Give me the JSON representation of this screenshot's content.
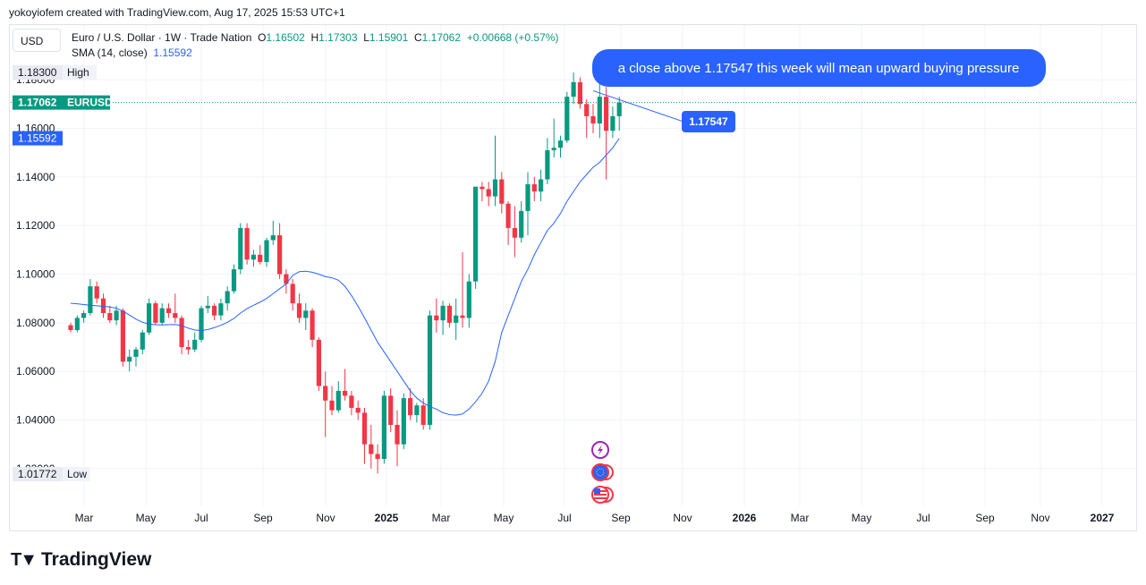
{
  "caption": "yokoyiofem created with TradingView.com, Aug 17, 2025 15:53 UTC+1",
  "currency": "USD",
  "legend": {
    "symbol": "Euro / U.S. Dollar · 1W · Trade Nation",
    "open_label": "O",
    "open": "1.16502",
    "high_label": "H",
    "high": "1.17303",
    "low_label": "L",
    "low": "1.15901",
    "close_label": "C",
    "close": "1.17062",
    "change": "+0.00668 (+0.57%)",
    "sma_label": "SMA (14, close)",
    "sma_value": "1.15592"
  },
  "brand": "TradingView",
  "colors": {
    "up": "#089981",
    "down": "#f23645",
    "sma": "#2962ff",
    "callout": "#2962ff"
  },
  "chart_data": {
    "type": "candlestick",
    "y_ticks": [
      "1.18000",
      "1.16000",
      "1.14000",
      "1.12000",
      "1.10000",
      "1.08000",
      "1.06000",
      "1.04000",
      "1.02000"
    ],
    "y_tick_values": [
      1.18,
      1.16,
      1.14,
      1.12,
      1.1,
      1.08,
      1.06,
      1.04,
      1.02
    ],
    "x_ticks": [
      "Mar",
      "May",
      "Jul",
      "Sep",
      "Nov",
      "2025",
      "Mar",
      "May",
      "Jul",
      "Sep",
      "Nov",
      "2026",
      "Mar",
      "May",
      "Jul",
      "Sep",
      "Nov",
      "2027"
    ],
    "ylim": [
      1.0045,
      1.2025
    ],
    "grid": true,
    "price_labels": [
      {
        "text": "1.18300",
        "tag": "High",
        "value": 1.183
      },
      {
        "text": "1.17062",
        "tag": "EURUSD",
        "value": 1.17062
      },
      {
        "text": "1.15592",
        "tag": "",
        "value": 1.15592
      },
      {
        "text": "1.01772",
        "tag": "Low",
        "value": 1.01772
      }
    ],
    "candles": [
      [
        1.079,
        1.08,
        1.076,
        1.077
      ],
      [
        1.077,
        1.083,
        1.076,
        1.082
      ],
      [
        1.082,
        1.085,
        1.08,
        1.084
      ],
      [
        1.084,
        1.098,
        1.083,
        1.095
      ],
      [
        1.095,
        1.097,
        1.088,
        1.09
      ],
      [
        1.09,
        1.092,
        1.082,
        1.084
      ],
      [
        1.084,
        1.087,
        1.08,
        1.081
      ],
      [
        1.081,
        1.087,
        1.079,
        1.085
      ],
      [
        1.085,
        1.086,
        1.062,
        1.064
      ],
      [
        1.064,
        1.069,
        1.06,
        1.066
      ],
      [
        1.066,
        1.07,
        1.062,
        1.069
      ],
      [
        1.069,
        1.077,
        1.067,
        1.076
      ],
      [
        1.076,
        1.09,
        1.075,
        1.088
      ],
      [
        1.088,
        1.089,
        1.079,
        1.08
      ],
      [
        1.08,
        1.088,
        1.079,
        1.086
      ],
      [
        1.086,
        1.088,
        1.082,
        1.084
      ],
      [
        1.084,
        1.092,
        1.08,
        1.082
      ],
      [
        1.082,
        1.083,
        1.067,
        1.07
      ],
      [
        1.07,
        1.073,
        1.067,
        1.069
      ],
      [
        1.069,
        1.076,
        1.068,
        1.073
      ],
      [
        1.073,
        1.087,
        1.072,
        1.086
      ],
      [
        1.086,
        1.091,
        1.084,
        1.087
      ],
      [
        1.087,
        1.088,
        1.081,
        1.083
      ],
      [
        1.083,
        1.09,
        1.081,
        1.088
      ],
      [
        1.088,
        1.095,
        1.085,
        1.093
      ],
      [
        1.093,
        1.104,
        1.092,
        1.102
      ],
      [
        1.102,
        1.121,
        1.1,
        1.119
      ],
      [
        1.119,
        1.121,
        1.104,
        1.106
      ],
      [
        1.106,
        1.11,
        1.103,
        1.108
      ],
      [
        1.108,
        1.112,
        1.104,
        1.105
      ],
      [
        1.105,
        1.115,
        1.103,
        1.114
      ],
      [
        1.114,
        1.122,
        1.112,
        1.116
      ],
      [
        1.116,
        1.121,
        1.098,
        1.1
      ],
      [
        1.1,
        1.102,
        1.092,
        1.096
      ],
      [
        1.096,
        1.098,
        1.085,
        1.088
      ],
      [
        1.088,
        1.092,
        1.08,
        1.082
      ],
      [
        1.082,
        1.088,
        1.077,
        1.085
      ],
      [
        1.085,
        1.086,
        1.07,
        1.073
      ],
      [
        1.073,
        1.074,
        1.052,
        1.054
      ],
      [
        1.054,
        1.06,
        1.033,
        1.048
      ],
      [
        1.048,
        1.054,
        1.042,
        1.044
      ],
      [
        1.044,
        1.056,
        1.043,
        1.052
      ],
      [
        1.052,
        1.061,
        1.048,
        1.05
      ],
      [
        1.05,
        1.052,
        1.042,
        1.045
      ],
      [
        1.045,
        1.048,
        1.04,
        1.043
      ],
      [
        1.043,
        1.045,
        1.022,
        1.03
      ],
      [
        1.03,
        1.038,
        1.02,
        1.026
      ],
      [
        1.026,
        1.03,
        1.018,
        1.024
      ],
      [
        1.024,
        1.052,
        1.022,
        1.05
      ],
      [
        1.05,
        1.053,
        1.035,
        1.038
      ],
      [
        1.038,
        1.044,
        1.021,
        1.03
      ],
      [
        1.03,
        1.051,
        1.028,
        1.049
      ],
      [
        1.049,
        1.053,
        1.04,
        1.042
      ],
      [
        1.042,
        1.047,
        1.039,
        1.046
      ],
      [
        1.046,
        1.049,
        1.036,
        1.038
      ],
      [
        1.038,
        1.085,
        1.036,
        1.083
      ],
      [
        1.083,
        1.09,
        1.076,
        1.081
      ],
      [
        1.081,
        1.089,
        1.075,
        1.087
      ],
      [
        1.087,
        1.088,
        1.078,
        1.08
      ],
      [
        1.08,
        1.09,
        1.073,
        1.083
      ],
      [
        1.083,
        1.109,
        1.078,
        1.082
      ],
      [
        1.082,
        1.1,
        1.078,
        1.097
      ],
      [
        1.097,
        1.135,
        1.094,
        1.136
      ],
      [
        1.136,
        1.138,
        1.13,
        1.135
      ],
      [
        1.135,
        1.138,
        1.128,
        1.132
      ],
      [
        1.132,
        1.157,
        1.128,
        1.139
      ],
      [
        1.139,
        1.142,
        1.125,
        1.129
      ],
      [
        1.129,
        1.13,
        1.112,
        1.119
      ],
      [
        1.119,
        1.128,
        1.107,
        1.115
      ],
      [
        1.115,
        1.13,
        1.113,
        1.126
      ],
      [
        1.126,
        1.142,
        1.116,
        1.137
      ],
      [
        1.137,
        1.14,
        1.13,
        1.134
      ],
      [
        1.134,
        1.143,
        1.13,
        1.139
      ],
      [
        1.139,
        1.156,
        1.137,
        1.151
      ],
      [
        1.151,
        1.164,
        1.148,
        1.152
      ],
      [
        1.152,
        1.157,
        1.148,
        1.155
      ],
      [
        1.155,
        1.175,
        1.154,
        1.173
      ],
      [
        1.173,
        1.183,
        1.17,
        1.179
      ],
      [
        1.179,
        1.181,
        1.168,
        1.17
      ],
      [
        1.17,
        1.172,
        1.156,
        1.165
      ],
      [
        1.165,
        1.17,
        1.158,
        1.162
      ],
      [
        1.162,
        1.179,
        1.156,
        1.173
      ],
      [
        1.173,
        1.177,
        1.139,
        1.159
      ],
      [
        1.159,
        1.169,
        1.156,
        1.165
      ],
      [
        1.165,
        1.173,
        1.159,
        1.1706
      ]
    ],
    "sma": [
      1.088,
      1.0878,
      1.0875,
      1.0872,
      1.087,
      1.0868,
      1.0865,
      1.086,
      1.0848,
      1.0832,
      1.0815,
      1.0802,
      1.0795,
      1.0792,
      1.0791,
      1.0792,
      1.0793,
      1.0788,
      1.0778,
      1.077,
      1.0768,
      1.0772,
      1.078,
      1.079,
      1.0802,
      1.0818,
      1.084,
      1.0858,
      1.0872,
      1.0885,
      1.09,
      1.092,
      1.094,
      1.096,
      1.0995,
      1.101,
      1.1012,
      1.1008,
      1.1,
      1.099,
      1.0985,
      1.0975,
      1.095,
      1.0912,
      1.0868,
      1.082,
      1.077,
      1.072,
      1.068,
      1.064,
      1.06,
      1.056,
      1.052,
      1.049,
      1.047,
      1.0455,
      1.0445,
      1.043,
      1.0422,
      1.042,
      1.0425,
      1.0445,
      1.0475,
      1.051,
      1.056,
      1.064,
      1.076,
      1.083,
      1.09,
      1.097,
      1.102,
      1.108,
      1.113,
      1.118,
      1.121,
      1.125,
      1.13,
      1.134,
      1.138,
      1.141,
      1.144,
      1.146,
      1.149,
      1.152,
      1.1559
    ],
    "trendline": {
      "from_candle": 80,
      "from_value": 1.17547,
      "label": "1.17547"
    },
    "annotation": "a close above 1.17547 this week will mean upward buying pressure"
  }
}
